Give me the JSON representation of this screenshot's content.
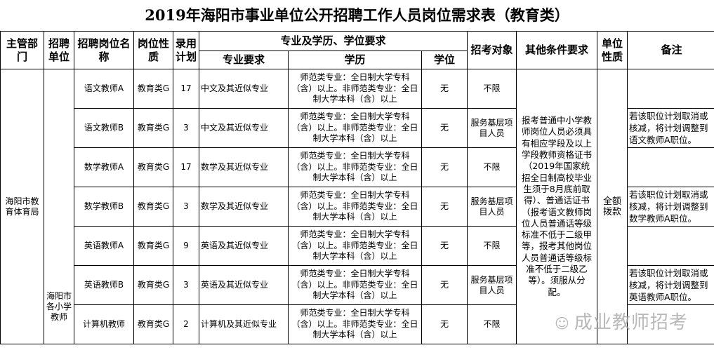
{
  "title": "2019年海阳市事业单位公开招聘工作人员岗位需求表（教育类）",
  "headers": {
    "dept": "主管部门",
    "unit": "招聘单位",
    "post": "招聘岗位名称",
    "nature": "岗位性质",
    "plan": "录用计划",
    "group": "专业及学历、学位要求",
    "major": "专业要求",
    "edu": "学历",
    "degree": "学位",
    "target": "招考对象",
    "other": "其他条件要求",
    "unit_type": "单位性质",
    "note": "备注"
  },
  "dept": "海阳市教育体育局",
  "unit": "海阳市各小学教师",
  "other": "报考普通中小学教师岗位人员必须具有相应学段及以上学段教师资格证书（2019年国家统招全日制高校毕业生须于8月底前取得）、普通话证书（报考语文教师岗位人员普通话等级标准不低于二级甲等，报考其他岗位人员普通话等级标准不低于二级乙等）。须服从分配。",
  "unit_type": "全额拨款",
  "rows": [
    {
      "post": "语文教师A",
      "nature": "教育类G",
      "plan": "17",
      "major": "中文及其近似专业",
      "edu": "师范类专业：全日制大学专科（含）以上。非师范类专业：全日制大学本科（含）以上",
      "degree": "无",
      "target": "不限",
      "note": ""
    },
    {
      "post": "语文教师B",
      "nature": "教育类G",
      "plan": "3",
      "major": "中文及其近似专业",
      "edu": "师范类专业：全日制大学专科（含）以上。非师范类专业：全日制大学本科（含）以上",
      "degree": "无",
      "target": "服务基层项目人员",
      "note": "若该职位计划取消或核减，将计划调整到语文教师A职位。"
    },
    {
      "post": "数学教师A",
      "nature": "教育类G",
      "plan": "17",
      "major": "数学及其近似专业",
      "edu": "师范类专业：全日制大学专科（含）以上。非师范类专业：全日制大学本科（含）以上",
      "degree": "无",
      "target": "不限",
      "note": ""
    },
    {
      "post": "数学教师B",
      "nature": "教育类G",
      "plan": "3",
      "major": "数学及其近似专业",
      "edu": "师范类专业：全日制大学专科（含）以上。非师范类专业：全日制大学本科（含）以上",
      "degree": "无",
      "target": "服务基层项目人员",
      "note": "若该职位计划取消或核减，将计划调整到数学教师A职位。"
    },
    {
      "post": "英语教师A",
      "nature": "教育类G",
      "plan": "9",
      "major": "英语及其近似专业",
      "edu": "师范类专业：全日制大学专科（含）以上。非师范类专业：全日制大学本科（含）以上",
      "degree": "无",
      "target": "不限",
      "note": ""
    },
    {
      "post": "英语教师B",
      "nature": "教育类G",
      "plan": "3",
      "major": "英语及其近似专业",
      "edu": "师范类专业：全日制大学专科（含）以上。非师范类专业：全日制大学本科（含）以上",
      "degree": "无",
      "target": "服务基层项目人员",
      "note": "若该职位计划取消或核减，将计划调整到英语教师A职位。"
    },
    {
      "post": "计算机教师",
      "nature": "教育类G",
      "plan": "2",
      "major": "计算机及其近似专业",
      "edu": "师范类专业：全日制大学专科（含）以上。非师范类专业：全日制大学本科（含）以上",
      "degree": "无",
      "target": "不限",
      "note": ""
    }
  ],
  "watermark": "成业教师招考"
}
